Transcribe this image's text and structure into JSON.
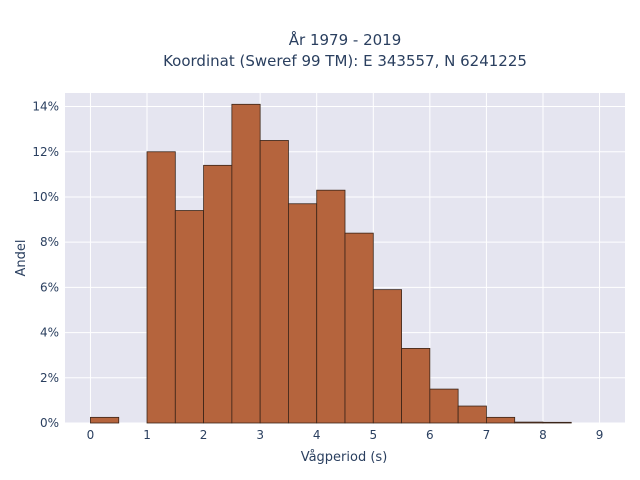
{
  "chart_data": {
    "type": "bar",
    "title_line1": "År 1979 - 2019",
    "title_line2": "Koordinat (Sweref 99 TM): E 343557, N 6241225",
    "xlabel": "Vågperiod (s)",
    "ylabel": "Andel",
    "bin_width": 0.5,
    "bins": [
      {
        "x0": 0.0,
        "value": 0.25
      },
      {
        "x0": 1.0,
        "value": 12.0
      },
      {
        "x0": 1.5,
        "value": 9.4
      },
      {
        "x0": 2.0,
        "value": 11.4
      },
      {
        "x0": 2.5,
        "value": 14.1
      },
      {
        "x0": 3.0,
        "value": 12.5
      },
      {
        "x0": 3.5,
        "value": 9.7
      },
      {
        "x0": 4.0,
        "value": 10.3
      },
      {
        "x0": 4.5,
        "value": 8.4
      },
      {
        "x0": 5.0,
        "value": 5.9
      },
      {
        "x0": 5.5,
        "value": 3.3
      },
      {
        "x0": 6.0,
        "value": 1.5
      },
      {
        "x0": 6.5,
        "value": 0.75
      },
      {
        "x0": 7.0,
        "value": 0.25
      },
      {
        "x0": 7.5,
        "value": 0.04
      },
      {
        "x0": 8.0,
        "value": 0.03
      }
    ],
    "xlim": [
      -0.45,
      9.45
    ],
    "ylim": [
      0,
      14.6
    ],
    "x_ticks": [
      "0",
      "1",
      "2",
      "3",
      "4",
      "5",
      "6",
      "7",
      "8",
      "9"
    ],
    "y_ticks": [
      "0%",
      "2%",
      "4%",
      "6%",
      "8%",
      "10%",
      "12%",
      "14%"
    ],
    "grid": true,
    "bar_color": "#b5643d",
    "bar_edge_color": "#3a2418",
    "plot_background": "#e5e5f0",
    "grid_color": "#ffffff"
  }
}
